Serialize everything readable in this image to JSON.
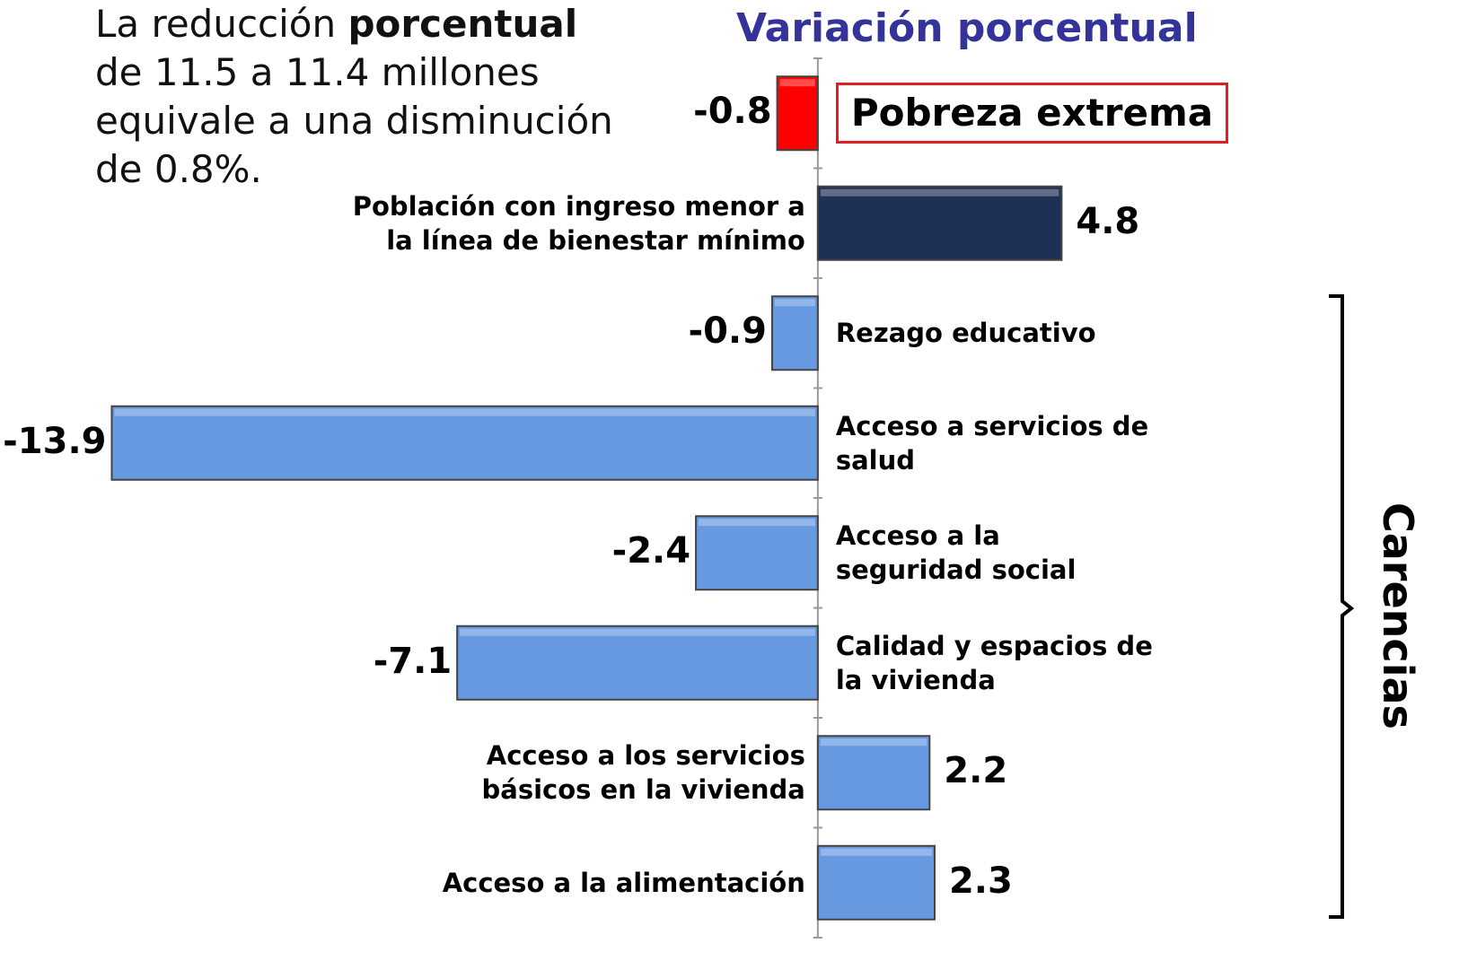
{
  "chart_data": {
    "type": "bar",
    "orientation": "horizontal",
    "title": "Variación porcentual",
    "annotation": [
      "La reducción ",
      "porcentual",
      "\nde 11.5  a 11.4 millones\nequivale a una disminución\nde 0.8%."
    ],
    "bracket_label": "Carencias",
    "categories": [
      "Pobreza extrema",
      "Población con ingreso menor a\nla línea de bienestar mínimo",
      "Rezago educativo",
      "Acceso a servicios de\nsalud",
      "Acceso a  la\nseguridad social",
      "Calidad y espacios de\nla vivienda",
      "Acceso a los servicios\nbásicos en la vivienda",
      "Acceso a la alimentación"
    ],
    "values": [
      -0.8,
      4.8,
      -0.9,
      -13.9,
      -2.4,
      -7.1,
      2.2,
      2.3
    ],
    "colors": [
      "#ff0000",
      "#1f3055",
      "#6699e0",
      "#6699e0",
      "#6699e0",
      "#6699e0",
      "#6699e0",
      "#6699e0"
    ],
    "xlim": [
      -16.1,
      12.8
    ]
  }
}
